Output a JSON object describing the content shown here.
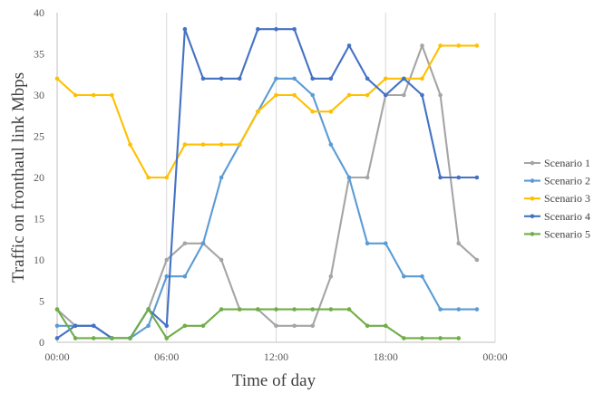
{
  "chart_data": {
    "type": "line",
    "title": "",
    "xlabel": "Time of day",
    "ylabel": "Traffic on fronthaul link Mbps",
    "x_ticks": [
      "00:00",
      "06:00",
      "12:00",
      "18:00",
      "00:00"
    ],
    "x_tick_hours": [
      0,
      6,
      12,
      18,
      24
    ],
    "xlim": [
      0,
      24
    ],
    "ylim": [
      0,
      40
    ],
    "y_ticks": [
      0,
      5,
      10,
      15,
      20,
      25,
      30,
      35,
      40
    ],
    "grid": "vertical",
    "legend": "right",
    "x": [
      0,
      1,
      2,
      3,
      4,
      5,
      6,
      7,
      8,
      9,
      10,
      11,
      12,
      13,
      14,
      15,
      16,
      17,
      18,
      19,
      20,
      21,
      22,
      23
    ],
    "series": [
      {
        "name": "Scenario 1",
        "color": "#A5A5A5",
        "values": [
          4,
          2,
          2,
          0.5,
          0.5,
          4,
          10,
          12,
          12,
          10,
          4,
          4,
          2,
          2,
          2,
          8,
          20,
          20,
          30,
          30,
          36,
          30,
          12,
          10
        ]
      },
      {
        "name": "Scenario 2",
        "color": "#5B9BD5",
        "values": [
          2,
          2,
          2,
          0.5,
          0.5,
          2,
          8,
          8,
          12,
          20,
          24,
          28,
          32,
          32,
          30,
          24,
          20,
          12,
          12,
          8,
          8,
          4,
          4,
          4
        ]
      },
      {
        "name": "Scenario 3",
        "color": "#FFC000",
        "values": [
          32,
          30,
          30,
          30,
          24,
          20,
          20,
          24,
          24,
          24,
          24,
          28,
          30,
          30,
          28,
          28,
          30,
          30,
          32,
          32,
          32,
          36,
          36,
          36
        ]
      },
      {
        "name": "Scenario 4",
        "color": "#4472C4",
        "values": [
          0.5,
          2,
          2,
          0.5,
          0.5,
          4,
          2,
          38,
          32,
          32,
          32,
          38,
          38,
          38,
          32,
          32,
          36,
          32,
          30,
          32,
          30,
          20,
          20,
          20
        ]
      },
      {
        "name": "Scenario 5",
        "color": "#70AD47",
        "values": [
          4,
          0.5,
          0.5,
          0.5,
          0.5,
          4,
          0.5,
          2,
          2,
          4,
          4,
          4,
          4,
          4,
          4,
          4,
          4,
          2,
          2,
          0.5,
          0.5,
          0.5,
          0.5,
          null
        ]
      }
    ]
  }
}
